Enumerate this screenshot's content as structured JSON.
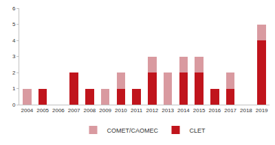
{
  "chart_data": {
    "type": "bar",
    "stacked": true,
    "categories": [
      "2004",
      "2005",
      "2006",
      "2007",
      "2008",
      "2009",
      "2010",
      "2011",
      "2012",
      "2013",
      "2014",
      "2015",
      "2016",
      "2017",
      "2018",
      "2019"
    ],
    "series": [
      {
        "name": "CLET",
        "color": "#c0141c",
        "values": [
          0,
          1,
          0,
          2,
          1,
          0,
          1,
          1,
          2,
          0,
          2,
          2,
          1,
          1,
          0,
          4
        ]
      },
      {
        "name": "COMET/CAOMEC",
        "color": "#d99aa0",
        "values": [
          1,
          0,
          0,
          0,
          0,
          1,
          1,
          0,
          1,
          2,
          1,
          1,
          0,
          1,
          0,
          1
        ]
      }
    ],
    "ylim": [
      0,
      6
    ],
    "yticks": [
      0,
      1,
      2,
      3,
      4,
      5,
      6
    ],
    "grid": false,
    "legend": "bottom"
  }
}
